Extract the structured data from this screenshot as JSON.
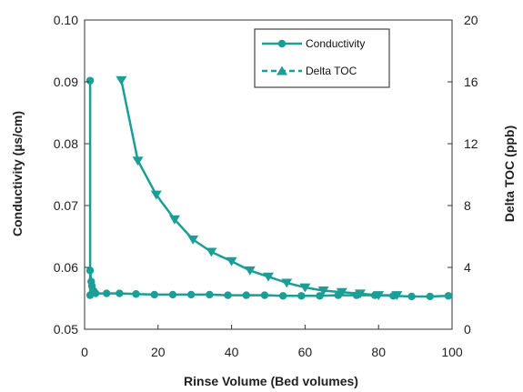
{
  "chart_data": {
    "type": "line",
    "xlabel": "Rinse Volume (Bed volumes)",
    "ylabel": "Conductivity (µs/cm)",
    "y2label": "Delta TOC (ppb)",
    "xlim": [
      0,
      100
    ],
    "ylim": [
      0.05,
      0.1
    ],
    "y2lim": [
      0,
      20
    ],
    "x_ticks": [
      "0",
      "20",
      "40",
      "60",
      "80",
      "100"
    ],
    "y_ticks": [
      "0.05",
      "0.06",
      "0.07",
      "0.08",
      "0.09",
      "0.10"
    ],
    "y2_ticks": [
      "0",
      "4",
      "8",
      "12",
      "16",
      "20"
    ],
    "grid": false,
    "legend_position": "top-right",
    "series": [
      {
        "name": "Conductivity",
        "axis": "left",
        "marker": "circle",
        "line": "solid",
        "color": "#1a9e96",
        "x": [
          1.5,
          1.5,
          1.5,
          1.8,
          2,
          2.5,
          3,
          6,
          9.5,
          14,
          19,
          24,
          29,
          34,
          39,
          44,
          49,
          54,
          59,
          64,
          69,
          74,
          79,
          84,
          89,
          94,
          99
        ],
        "y": [
          0.0902,
          0.0555,
          0.0595,
          0.0577,
          0.057,
          0.0562,
          0.0558,
          0.0558,
          0.0558,
          0.0557,
          0.0556,
          0.0556,
          0.0556,
          0.0556,
          0.0555,
          0.0555,
          0.0555,
          0.0554,
          0.0554,
          0.0554,
          0.0555,
          0.0555,
          0.0555,
          0.0554,
          0.0553,
          0.0553,
          0.0554
        ]
      },
      {
        "name": "Delta TOC",
        "axis": "right",
        "marker": "triangle",
        "line": "dashed",
        "color": "#1a9e96",
        "x": [
          10,
          14.5,
          19.5,
          24.5,
          29.5,
          34.5,
          40,
          45,
          50,
          55,
          60,
          65,
          70,
          75,
          80,
          85
        ],
        "y": [
          16.1,
          10.9,
          8.7,
          7.1,
          5.8,
          5.0,
          4.4,
          3.8,
          3.4,
          3.0,
          2.7,
          2.5,
          2.4,
          2.3,
          2.2,
          2.2
        ]
      }
    ]
  }
}
